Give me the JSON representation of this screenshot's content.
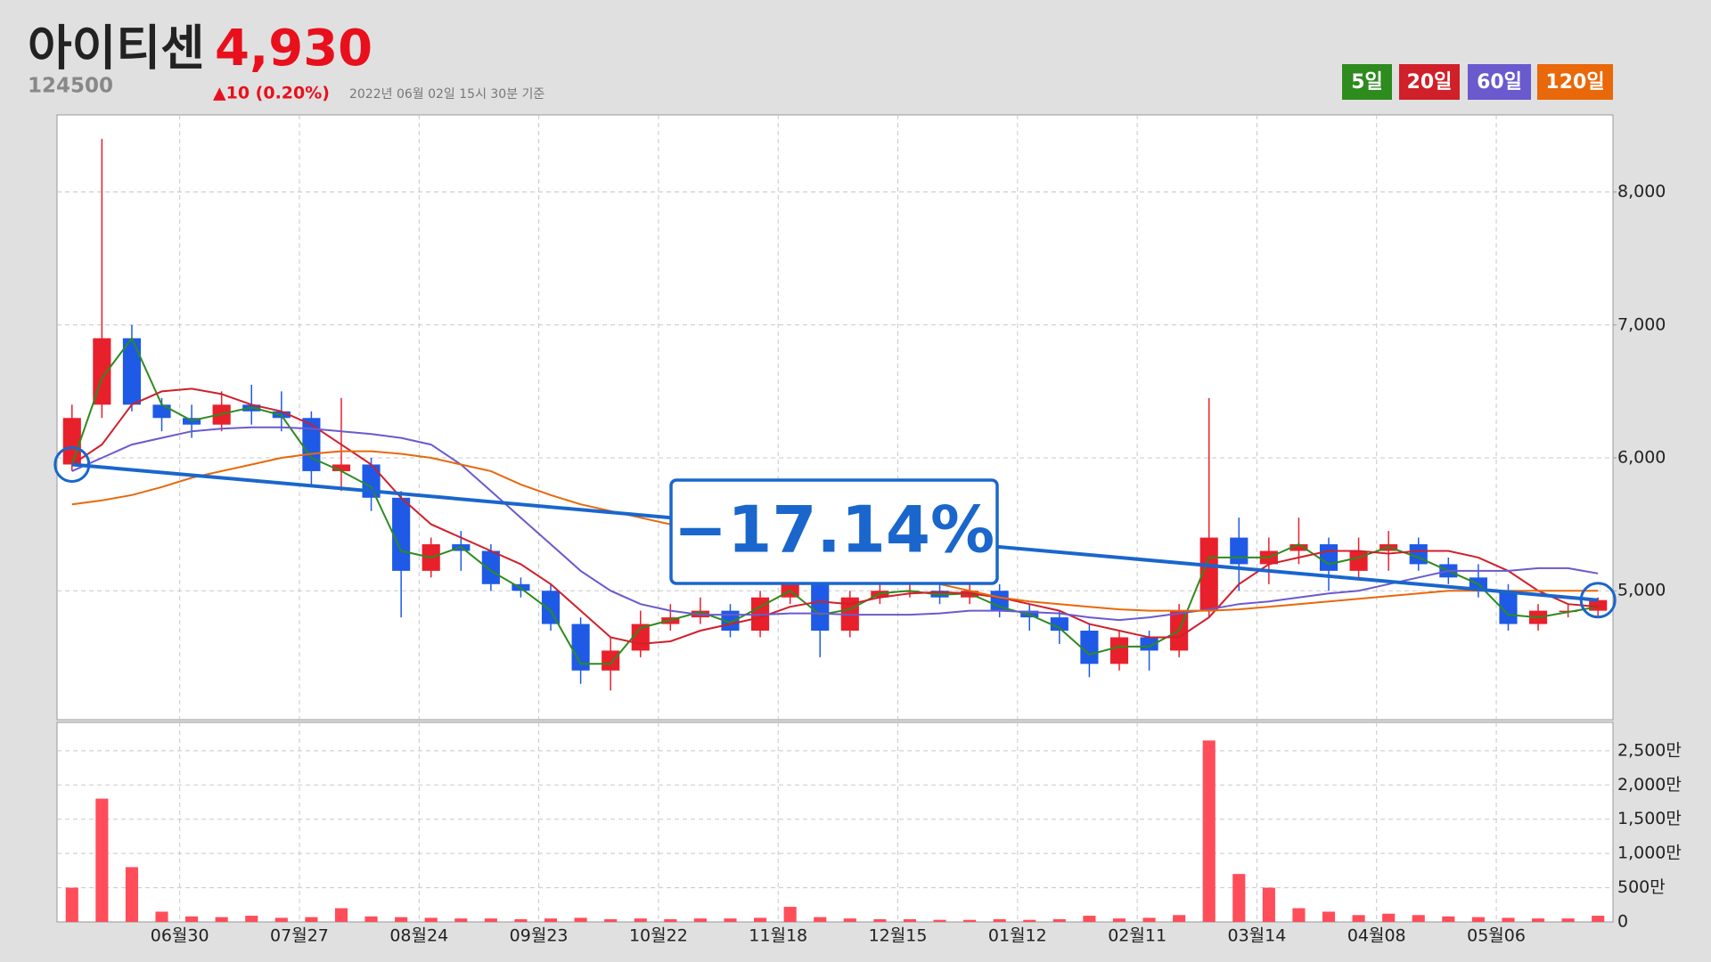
{
  "header": {
    "name": "아이티센",
    "price": "4,930",
    "code": "124500",
    "change": "▲10 (0.20%)",
    "timestamp": "2022년 06월 02일 15시 30분 기준"
  },
  "chart_data": {
    "type": "candlestick",
    "open": [
      5950,
      6400,
      6900,
      6400,
      6300,
      6250,
      6400,
      6350,
      6300,
      5900,
      5950,
      5700,
      5150,
      5350,
      5300,
      5050,
      5000,
      4750,
      4400,
      4550,
      4750,
      4800,
      4850,
      4700,
      4950,
      5050,
      4700,
      4950,
      5000,
      5000,
      4950,
      5000,
      4850,
      4800,
      4700,
      4450,
      4650,
      4550,
      4850,
      5400,
      5200,
      5300,
      5350,
      5150,
      5300,
      5350,
      5200,
      5100,
      5000,
      4750,
      4850,
      4850
    ],
    "high": [
      6400,
      8400,
      7000,
      6450,
      6400,
      6500,
      6550,
      6500,
      6350,
      6450,
      6000,
      5750,
      5400,
      5450,
      5350,
      5100,
      5050,
      4800,
      4650,
      4850,
      4900,
      4950,
      4900,
      5000,
      5250,
      5100,
      5000,
      5050,
      5100,
      5050,
      5100,
      5050,
      4900,
      4850,
      4750,
      4700,
      4700,
      4900,
      6450,
      5550,
      5400,
      5550,
      5400,
      5400,
      5450,
      5400,
      5250,
      5200,
      5050,
      4900,
      4900,
      4950
    ],
    "low": [
      5900,
      6300,
      6350,
      6200,
      6150,
      6200,
      6250,
      6200,
      5800,
      5750,
      5600,
      4800,
      5100,
      5150,
      5000,
      4950,
      4700,
      4300,
      4250,
      4500,
      4700,
      4750,
      4650,
      4650,
      4900,
      4500,
      4650,
      4900,
      4950,
      4900,
      4900,
      4800,
      4700,
      4600,
      4350,
      4400,
      4400,
      4500,
      4800,
      5000,
      5050,
      5200,
      5000,
      5100,
      5150,
      5150,
      5050,
      4950,
      4700,
      4700,
      4800,
      4800
    ],
    "close": [
      6300,
      6900,
      6400,
      6300,
      6250,
      6400,
      6350,
      6300,
      5900,
      5950,
      5700,
      5150,
      5350,
      5300,
      5050,
      5000,
      4750,
      4400,
      4550,
      4750,
      4800,
      4850,
      4700,
      4950,
      5050,
      4700,
      4950,
      5000,
      5000,
      4950,
      5000,
      4850,
      4800,
      4700,
      4450,
      4650,
      4550,
      4850,
      5400,
      5200,
      5300,
      5350,
      5150,
      5300,
      5350,
      5200,
      5100,
      5000,
      4750,
      4850,
      4850,
      4930
    ],
    "up_color": "#e8202c",
    "down_color": "#1e5ae6",
    "volume": [
      5000000,
      18000000,
      8000000,
      1500000,
      800000,
      700000,
      900000,
      600000,
      700000,
      2000000,
      800000,
      700000,
      600000,
      500000,
      500000,
      400000,
      500000,
      600000,
      400000,
      500000,
      400000,
      500000,
      500000,
      600000,
      2200000,
      700000,
      500000,
      400000,
      400000,
      300000,
      300000,
      400000,
      300000,
      400000,
      900000,
      500000,
      600000,
      1000000,
      26500000,
      7000000,
      5000000,
      2000000,
      1500000,
      1000000,
      1200000,
      1000000,
      800000,
      700000,
      600000,
      500000,
      500000,
      900000
    ],
    "volume_color": "#ff4d5a",
    "series": [
      {
        "name": "5일",
        "color": "#2e8b1e",
        "values": [
          5950,
          6600,
          6900,
          6400,
          6280,
          6330,
          6380,
          6320,
          6000,
          5900,
          5780,
          5300,
          5250,
          5330,
          5150,
          5020,
          4850,
          4450,
          4450,
          4720,
          4780,
          4840,
          4760,
          4880,
          5000,
          4820,
          4860,
          4980,
          5000,
          4970,
          4980,
          4880,
          4820,
          4720,
          4520,
          4580,
          4580,
          4700,
          5250,
          5250,
          5250,
          5350,
          5200,
          5250,
          5330,
          5250,
          5150,
          5050,
          4820,
          4800,
          4840,
          4880
        ]
      },
      {
        "name": "20일",
        "color": "#d0202a",
        "values": [
          5950,
          6100,
          6400,
          6500,
          6520,
          6480,
          6400,
          6350,
          6250,
          6100,
          5950,
          5700,
          5500,
          5400,
          5300,
          5200,
          5050,
          4850,
          4650,
          4600,
          4620,
          4700,
          4750,
          4800,
          4880,
          4920,
          4900,
          4950,
          4980,
          4990,
          4980,
          4950,
          4900,
          4850,
          4750,
          4700,
          4650,
          4650,
          4800,
          5050,
          5200,
          5250,
          5300,
          5300,
          5280,
          5300,
          5300,
          5250,
          5150,
          5000,
          4900,
          4880
        ]
      },
      {
        "name": "60일",
        "color": "#6a5acd",
        "values": [
          5900,
          6000,
          6100,
          6150,
          6200,
          6220,
          6230,
          6230,
          6220,
          6200,
          6180,
          6150,
          6100,
          5950,
          5750,
          5550,
          5350,
          5150,
          5000,
          4900,
          4850,
          4820,
          4820,
          4820,
          4830,
          4830,
          4820,
          4820,
          4820,
          4830,
          4850,
          4850,
          4840,
          4830,
          4800,
          4780,
          4800,
          4830,
          4860,
          4900,
          4920,
          4950,
          4980,
          5000,
          5050,
          5100,
          5150,
          5150,
          5150,
          5170,
          5170,
          5130
        ]
      },
      {
        "name": "120일",
        "color": "#e8680a",
        "values": [
          5650,
          5680,
          5720,
          5780,
          5850,
          5900,
          5950,
          6000,
          6030,
          6050,
          6050,
          6030,
          6000,
          5950,
          5900,
          5800,
          5720,
          5650,
          5600,
          5550,
          5500,
          5450,
          5400,
          5350,
          5300,
          5250,
          5200,
          5150,
          5100,
          5050,
          5000,
          4950,
          4920,
          4900,
          4880,
          4860,
          4850,
          4850,
          4850,
          4860,
          4880,
          4900,
          4920,
          4940,
          4960,
          4980,
          5000,
          5000,
          5000,
          5000,
          5000,
          5000
        ]
      }
    ],
    "trend": {
      "values": [
        5950,
        4930
      ],
      "label": "−17.14%",
      "color": "#1a66cc"
    },
    "xlim": [
      -0.5,
      51.5
    ],
    "xticks": [
      {
        "value": 3.6,
        "label": "06월30"
      },
      {
        "value": 7.6,
        "label": "07월27"
      },
      {
        "value": 11.6,
        "label": "08월24"
      },
      {
        "value": 15.6,
        "label": "09월23"
      },
      {
        "value": 19.6,
        "label": "10월22"
      },
      {
        "value": 23.6,
        "label": "11월18"
      },
      {
        "value": 27.6,
        "label": "12월15"
      },
      {
        "value": 31.6,
        "label": "01월12"
      },
      {
        "value": 35.6,
        "label": "02월11"
      },
      {
        "value": 39.6,
        "label": "03월14"
      },
      {
        "value": 43.6,
        "label": "04월08"
      },
      {
        "value": 47.6,
        "label": "05월06"
      }
    ],
    "ylim": [
      4030,
      8580
    ],
    "yticks": [
      {
        "value": 5000,
        "label": "5,000"
      },
      {
        "value": 6000,
        "label": "6,000"
      },
      {
        "value": 7000,
        "label": "7,000"
      },
      {
        "value": 8000,
        "label": "8,000"
      }
    ],
    "volume_ylim": [
      0,
      29140000
    ],
    "volume_yticks": [
      0,
      {
        "value": 5000000,
        "label": "500만"
      },
      {
        "value": 10000000,
        "label": "1,000만"
      },
      {
        "value": 15000000,
        "label": "1,500만"
      },
      {
        "value": 20000000,
        "label": "2,000만"
      },
      {
        "value": 25000000,
        "label": "2,500만"
      }
    ],
    "grid": true
  }
}
